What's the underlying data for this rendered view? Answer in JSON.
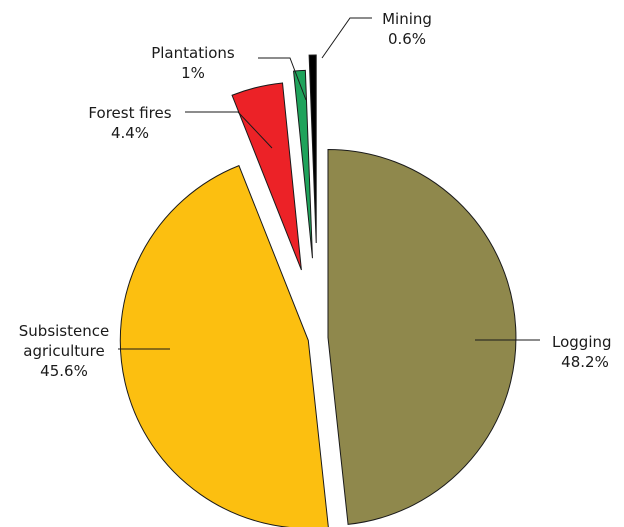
{
  "chart_data": {
    "type": "pie",
    "slices": [
      {
        "name": "Logging",
        "display": "Logging",
        "value_label": "48.2%",
        "value": 48.2,
        "color": "#8f884c"
      },
      {
        "name": "Subsistence agriculture",
        "display": [
          "Subsistence",
          "agriculture"
        ],
        "value_label": "45.6%",
        "value": 45.6,
        "color": "#fcbf10"
      },
      {
        "name": "Forest fires",
        "display": "Forest fires",
        "value_label": "4.4%",
        "value": 4.4,
        "color": "#ec2227"
      },
      {
        "name": "Plantations",
        "display": "Plantations",
        "value_label": "1%",
        "value": 1,
        "color": "#1fa35b"
      },
      {
        "name": "Mining",
        "display": "Mining",
        "value_label": "0.6%",
        "value": 0.6,
        "color": "#000000"
      }
    ]
  }
}
